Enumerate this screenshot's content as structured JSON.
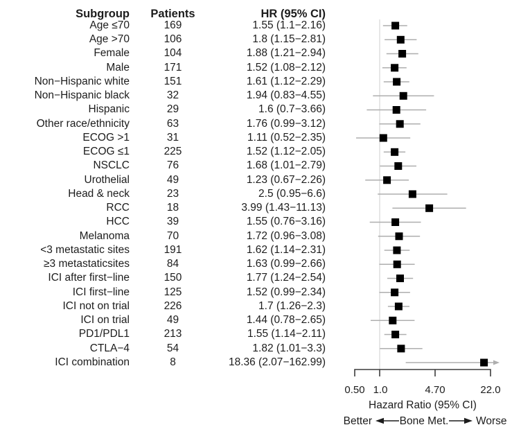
{
  "chart_data": {
    "type": "scatter",
    "subtype": "forest-plot",
    "title": "",
    "xlabel": "Hazard Ratio (95% CI)",
    "x_scale": "log",
    "xlim": [
      0.5,
      22
    ],
    "x_ticks": [
      0.5,
      1.0,
      4.7,
      22.0
    ],
    "x_tick_labels": [
      "0.50",
      "1.0",
      "4.70",
      "22.0"
    ],
    "reference_line": 1.0,
    "grid": false,
    "marker": "black-square",
    "ci_line_color": "#aeaeae",
    "marker_color": "#000000",
    "direction_labels": {
      "left": "Better",
      "center": "Bone Met.",
      "right": "Worse"
    },
    "columns": {
      "subgroup": "Subgroup",
      "patients": "Patients",
      "hr_ci": "HR (95% CI)"
    },
    "rows": [
      {
        "subgroup": "Age ≤70",
        "patients": "169",
        "hr_ci": "1.55 (1.1−2.16)",
        "hr": 1.55,
        "ci_low": 1.1,
        "ci_high": 2.16
      },
      {
        "subgroup": "Age >70",
        "patients": "106",
        "hr_ci": "1.8 (1.15−2.81)",
        "hr": 1.8,
        "ci_low": 1.15,
        "ci_high": 2.81
      },
      {
        "subgroup": "Female",
        "patients": "104",
        "hr_ci": "1.88 (1.21−2.94)",
        "hr": 1.88,
        "ci_low": 1.21,
        "ci_high": 2.94
      },
      {
        "subgroup": "Male",
        "patients": "171",
        "hr_ci": "1.52 (1.08−2.12)",
        "hr": 1.52,
        "ci_low": 1.08,
        "ci_high": 2.12
      },
      {
        "subgroup": "Non−Hispanic white",
        "patients": "151",
        "hr_ci": "1.61 (1.12−2.29)",
        "hr": 1.61,
        "ci_low": 1.12,
        "ci_high": 2.29
      },
      {
        "subgroup": "Non−Hispanic black",
        "patients": "32",
        "hr_ci": "1.94 (0.83−4.55)",
        "hr": 1.94,
        "ci_low": 0.83,
        "ci_high": 4.55
      },
      {
        "subgroup": "Hispanic",
        "patients": "29",
        "hr_ci": "1.6 (0.7−3.66)",
        "hr": 1.6,
        "ci_low": 0.7,
        "ci_high": 3.66
      },
      {
        "subgroup": "Other race/ethnicity",
        "patients": "63",
        "hr_ci": "1.76 (0.99−3.12)",
        "hr": 1.76,
        "ci_low": 0.99,
        "ci_high": 3.12
      },
      {
        "subgroup": "ECOG >1",
        "patients": "31",
        "hr_ci": "1.11 (0.52−2.35)",
        "hr": 1.11,
        "ci_low": 0.52,
        "ci_high": 2.35
      },
      {
        "subgroup": "ECOG ≤1",
        "patients": "225",
        "hr_ci": "1.52 (1.12−2.05)",
        "hr": 1.52,
        "ci_low": 1.12,
        "ci_high": 2.05
      },
      {
        "subgroup": "NSCLC",
        "patients": "76",
        "hr_ci": "1.68 (1.01−2.79)",
        "hr": 1.68,
        "ci_low": 1.01,
        "ci_high": 2.79
      },
      {
        "subgroup": "Urothelial",
        "patients": "49",
        "hr_ci": "1.23 (0.67−2.26)",
        "hr": 1.23,
        "ci_low": 0.67,
        "ci_high": 2.26
      },
      {
        "subgroup": "Head & neck",
        "patients": "23",
        "hr_ci": "2.5 (0.95−6.6)",
        "hr": 2.5,
        "ci_low": 0.95,
        "ci_high": 6.6
      },
      {
        "subgroup": "RCC",
        "patients": "18",
        "hr_ci": "3.99 (1.43−11.13)",
        "hr": 3.99,
        "ci_low": 1.43,
        "ci_high": 11.13
      },
      {
        "subgroup": "HCC",
        "patients": "39",
        "hr_ci": "1.55 (0.76−3.16)",
        "hr": 1.55,
        "ci_low": 0.76,
        "ci_high": 3.16
      },
      {
        "subgroup": "Melanoma",
        "patients": "70",
        "hr_ci": "1.72 (0.96−3.08)",
        "hr": 1.72,
        "ci_low": 0.96,
        "ci_high": 3.08
      },
      {
        "subgroup": "<3 metastatic sites",
        "patients": "191",
        "hr_ci": "1.62 (1.14−2.31)",
        "hr": 1.62,
        "ci_low": 1.14,
        "ci_high": 2.31
      },
      {
        "subgroup": "≥3 metastaticsites",
        "patients": "84",
        "hr_ci": "1.63 (0.99−2.66)",
        "hr": 1.63,
        "ci_low": 0.99,
        "ci_high": 2.66
      },
      {
        "subgroup": "ICI after first−line",
        "patients": "150",
        "hr_ci": "1.77 (1.24−2.54)",
        "hr": 1.77,
        "ci_low": 1.24,
        "ci_high": 2.54
      },
      {
        "subgroup": "ICI first−line",
        "patients": "125",
        "hr_ci": "1.52 (0.99−2.34)",
        "hr": 1.52,
        "ci_low": 0.99,
        "ci_high": 2.34
      },
      {
        "subgroup": "ICI not on trial",
        "patients": "226",
        "hr_ci": "1.7 (1.26−2.3)",
        "hr": 1.7,
        "ci_low": 1.26,
        "ci_high": 2.3
      },
      {
        "subgroup": "ICI on trial",
        "patients": "49",
        "hr_ci": "1.44 (0.78−2.65)",
        "hr": 1.44,
        "ci_low": 0.78,
        "ci_high": 2.65
      },
      {
        "subgroup": "PD1/PDL1",
        "patients": "213",
        "hr_ci": "1.55 (1.14−2.11)",
        "hr": 1.55,
        "ci_low": 1.14,
        "ci_high": 2.11
      },
      {
        "subgroup": "CTLA−4",
        "patients": "54",
        "hr_ci": "1.82 (1.01−3.3)",
        "hr": 1.82,
        "ci_low": 1.01,
        "ci_high": 3.3
      },
      {
        "subgroup": "ICI combination",
        "patients": "8",
        "hr_ci": "18.36 (2.07−162.99)",
        "hr": 18.36,
        "ci_low": 2.07,
        "ci_high": 162.99
      }
    ]
  }
}
